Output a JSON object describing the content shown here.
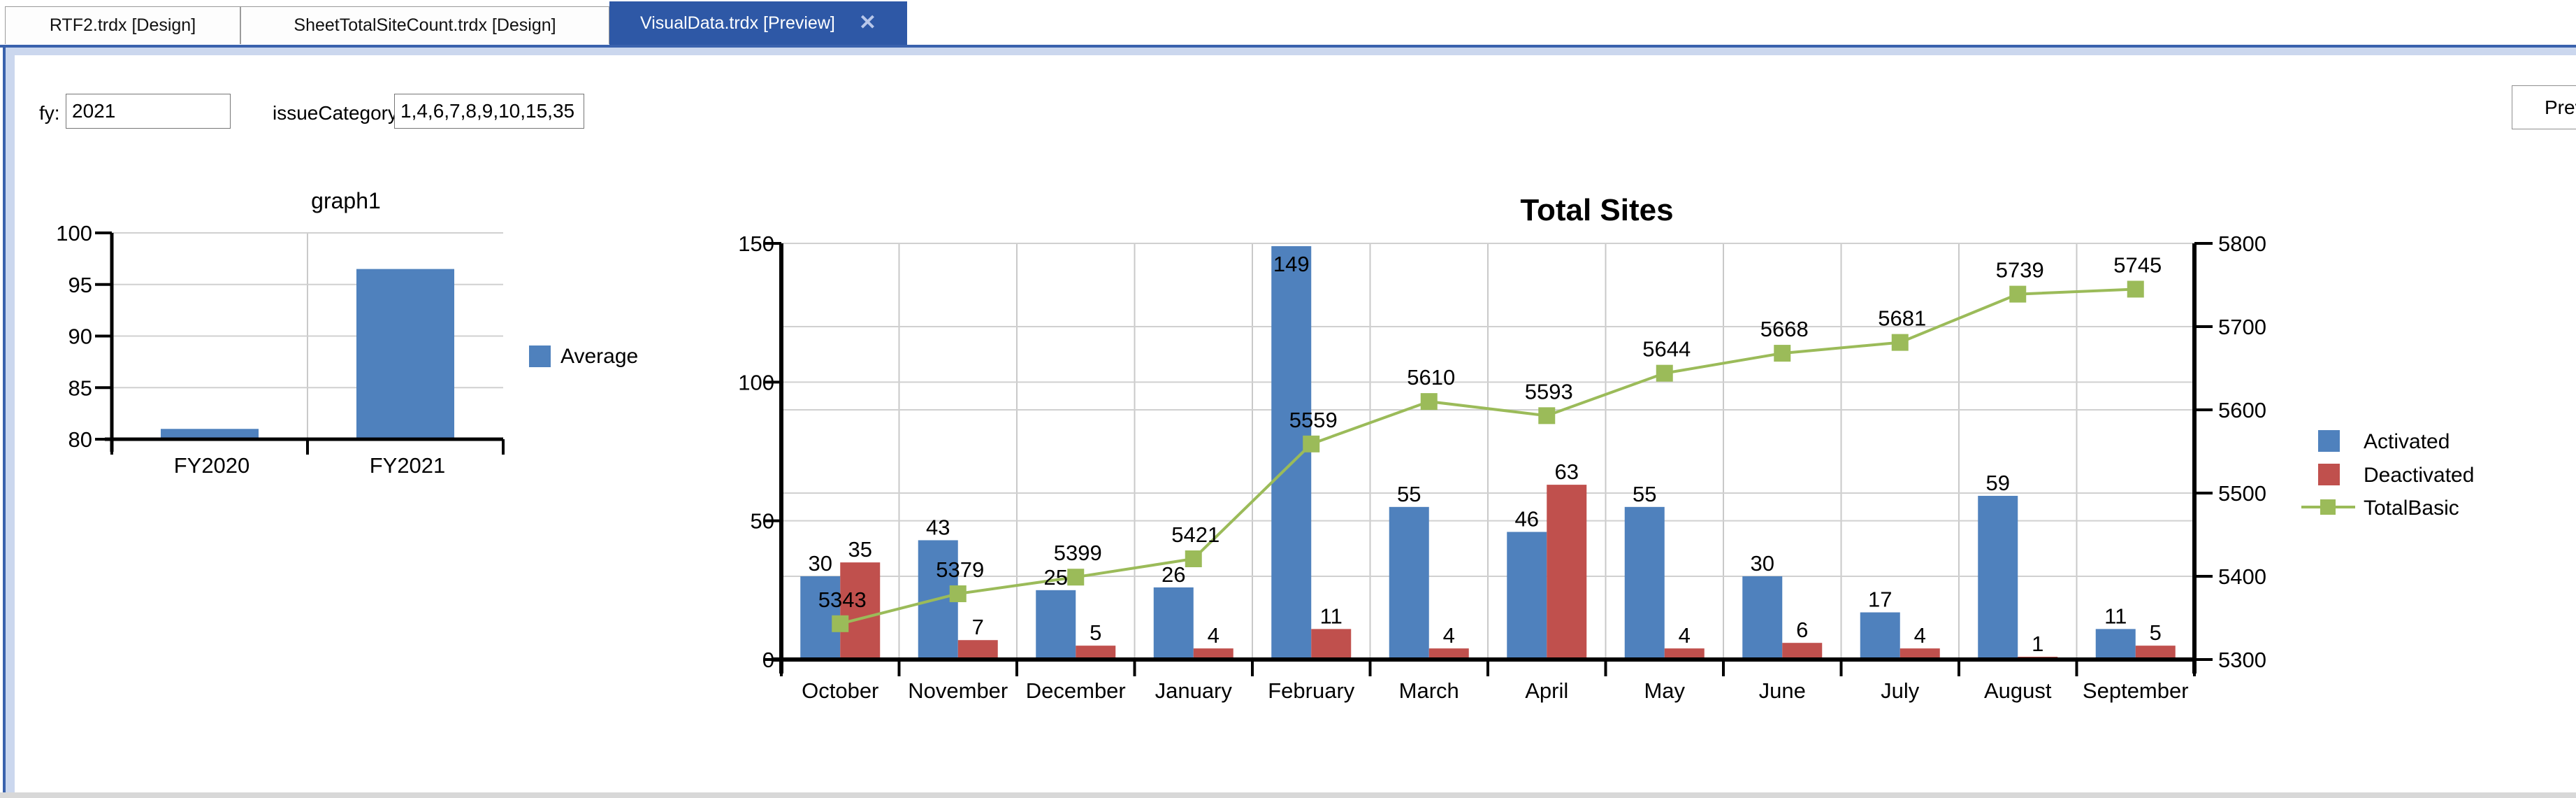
{
  "tabs": [
    {
      "label": "RTF2.trdx [Design]",
      "active": false
    },
    {
      "label": "SheetTotalSiteCount.trdx [Design]",
      "active": false
    },
    {
      "label": "VisualData.trdx [Preview]",
      "active": true,
      "close_glyph": "✕"
    }
  ],
  "parameters": {
    "fy_label": "fy:",
    "fy_value": "2021",
    "issue_label": "issueCategoryIDS:",
    "issue_value": "1,4,6,7,8,9,10,15,35"
  },
  "preview_button_label": "Prev",
  "colors": {
    "activated_blue": "#4F81BD",
    "deactivated_red": "#C0504D",
    "totalbasic_green": "#9BBB59",
    "grid_v": "#c9c9c9",
    "grid_h": "#d0d0d0",
    "axis": "#000000",
    "active_tab": "#2e58a6"
  },
  "chart_data": [
    {
      "type": "bar",
      "title": "graph1",
      "categories": [
        "FY2020",
        "FY2021"
      ],
      "series": [
        {
          "name": "Average",
          "type": "bar",
          "color": "#4F81BD",
          "values": [
            81,
            96.5
          ]
        }
      ],
      "ylim": [
        80,
        100
      ],
      "yticks": [
        80,
        85,
        90,
        95,
        100
      ],
      "grid": true,
      "legend_position": "right",
      "legend": [
        "Average"
      ]
    },
    {
      "type": "bar+line",
      "title": "Total Sites",
      "categories": [
        "October",
        "November",
        "December",
        "January",
        "February",
        "March",
        "April",
        "May",
        "June",
        "July",
        "August",
        "September"
      ],
      "series": [
        {
          "name": "Activated",
          "type": "bar",
          "axis": "left",
          "color": "#4F81BD",
          "values": [
            30,
            43,
            25,
            26,
            149,
            55,
            46,
            55,
            30,
            17,
            59,
            11
          ]
        },
        {
          "name": "Deactivated",
          "type": "bar",
          "axis": "left",
          "color": "#C0504D",
          "values": [
            35,
            7,
            5,
            4,
            11,
            4,
            63,
            4,
            6,
            4,
            1,
            5
          ]
        },
        {
          "name": "TotalBasic",
          "type": "line",
          "axis": "right",
          "color": "#9BBB59",
          "values": [
            5343,
            5379,
            5399,
            5421,
            5559,
            5610,
            5593,
            5644,
            5668,
            5681,
            5739,
            5745
          ]
        }
      ],
      "ylim_left": [
        0,
        150
      ],
      "yticks_left": [
        0,
        50,
        100,
        150
      ],
      "ylim_right": [
        5300,
        5800
      ],
      "yticks_right": [
        5300,
        5400,
        5500,
        5600,
        5700,
        5800
      ],
      "grid": true,
      "legend_position": "right",
      "legend": [
        "Activated",
        "Deactivated",
        "TotalBasic"
      ]
    }
  ]
}
